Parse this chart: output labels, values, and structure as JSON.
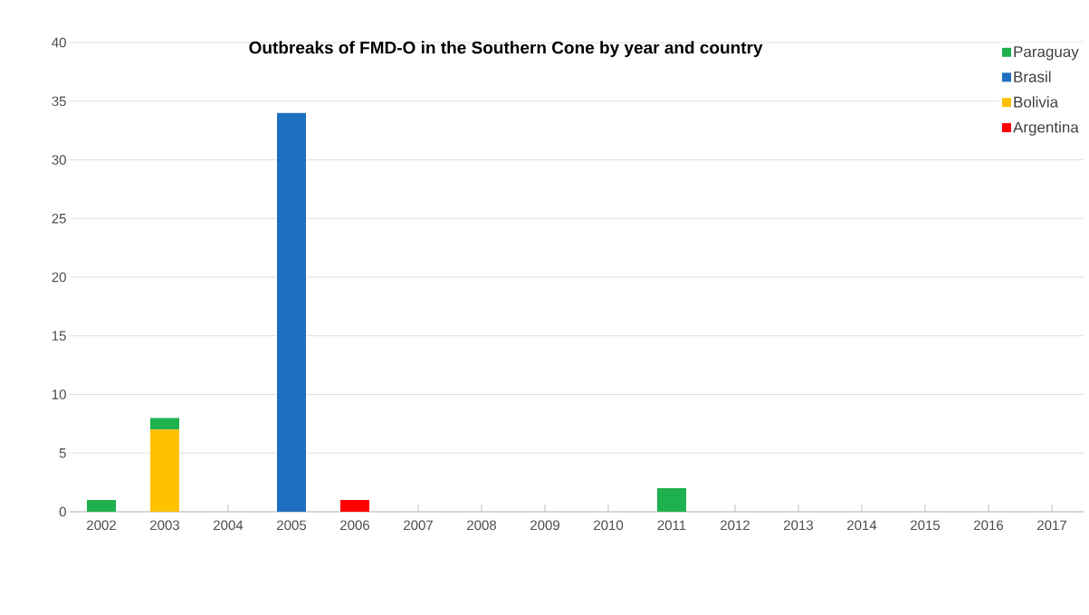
{
  "chart_data": {
    "type": "bar",
    "title": "Outbreaks of FMD-O in the Southern Cone by year and country",
    "categories": [
      "2002",
      "2003",
      "2004",
      "2005",
      "2006",
      "2007",
      "2008",
      "2009",
      "2010",
      "2011",
      "2012",
      "2013",
      "2014",
      "2015",
      "2016",
      "2017"
    ],
    "stacked": true,
    "series": [
      {
        "name": "Argentina",
        "color": "#ff0000",
        "values": [
          0,
          0,
          0,
          0,
          1,
          0,
          0,
          0,
          0,
          0,
          0,
          0,
          0,
          0,
          0,
          0
        ]
      },
      {
        "name": "Bolivia",
        "color": "#ffc000",
        "values": [
          0,
          7,
          0,
          0,
          0,
          0,
          0,
          0,
          0,
          0,
          0,
          0,
          0,
          0,
          0,
          0
        ]
      },
      {
        "name": "Brasil",
        "color": "#1f6fc0",
        "values": [
          0,
          0,
          0,
          34,
          0,
          0,
          0,
          0,
          0,
          0,
          0,
          0,
          0,
          0,
          0,
          0
        ]
      },
      {
        "name": "Paraguay",
        "color": "#1fb04f",
        "values": [
          1,
          1,
          0,
          0,
          0,
          0,
          0,
          0,
          0,
          2,
          0,
          0,
          0,
          0,
          0,
          0
        ]
      }
    ],
    "ylim": [
      0,
      40
    ],
    "yticks": [
      0,
      5,
      10,
      15,
      20,
      25,
      30,
      35,
      40
    ],
    "grid": "y",
    "legend": "top right"
  }
}
